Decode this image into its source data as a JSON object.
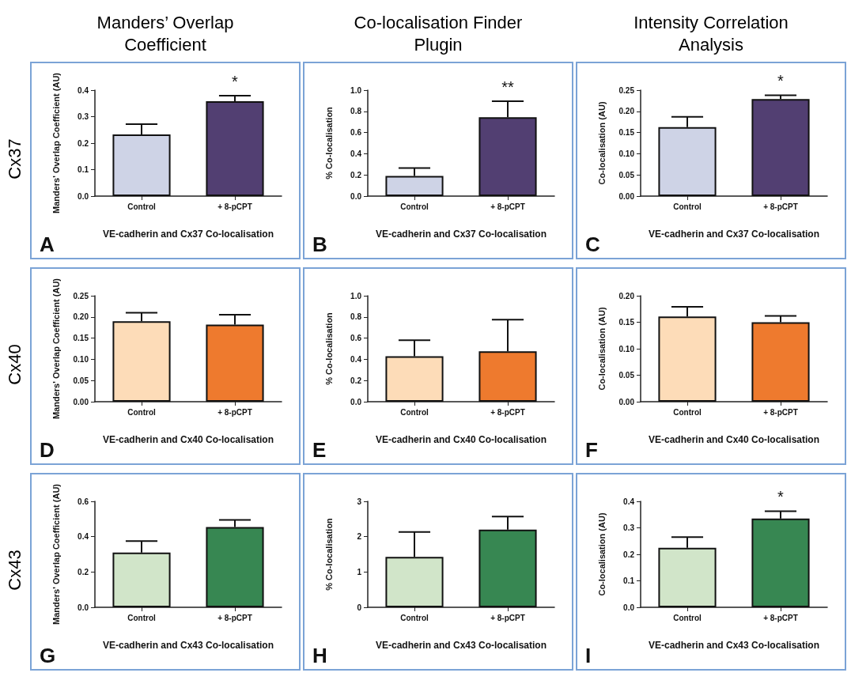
{
  "chart_data": [
    {
      "type": "bar",
      "title": "Manders’ Overlap Coefficient",
      "subtitle": "Cx37",
      "ylabel": "Manders' Overlap Coefficient (AU)",
      "xlabel": "VE-cadherin and Cx37 Co-localisation",
      "categories": [
        "Control",
        "+ 8-pCPT"
      ],
      "values": [
        0.233,
        0.358
      ],
      "colors": [
        "#ced3e6",
        "#523f72"
      ],
      "errors": [
        [
          0.233,
          0.272
        ],
        [
          0.358,
          0.379
        ]
      ],
      "ylim": [
        0,
        0.4
      ],
      "yticks": [
        {
          "value": 0,
          "label": "0.0"
        },
        {
          "value": 0.1,
          "label": "0.1"
        },
        {
          "value": 0.2,
          "label": "0.2"
        },
        {
          "value": 0.3,
          "label": "0.3"
        },
        {
          "value": 0.4,
          "label": "0.4"
        }
      ],
      "grid": false,
      "annotations": [
        "A",
        "*"
      ]
    },
    {
      "type": "bar",
      "title": "Co-localisation Finder Plugin",
      "ylabel": "% Co-localisation",
      "xlabel": "VE-cadherin and Cx37 Co-localisation",
      "categories": [
        "Control",
        "+ 8-pCPT"
      ],
      "values": [
        0.19,
        0.745
      ],
      "colors": [
        "#ced3e6",
        "#523f72"
      ],
      "errors": [
        [
          0.19,
          0.265
        ],
        [
          0.745,
          0.895
        ]
      ],
      "ylim": [
        0,
        1
      ],
      "yticks": [
        {
          "value": 0,
          "label": "0.0"
        },
        {
          "value": 0.2,
          "label": "0.2"
        },
        {
          "value": 0.4,
          "label": "0.4"
        },
        {
          "value": 0.6,
          "label": "0.6"
        },
        {
          "value": 0.8,
          "label": "0.8"
        },
        {
          "value": 1,
          "label": "1.0"
        }
      ],
      "grid": false,
      "annotations": [
        "B",
        "**"
      ]
    },
    {
      "type": "bar",
      "title": "Intensity Correlation Analysis",
      "ylabel": "Co-localisation (AU)",
      "xlabel": "VE-cadherin and Cx37 Co-localisation",
      "categories": [
        "Control",
        "+ 8-pCPT"
      ],
      "values": [
        0.163,
        0.229
      ],
      "colors": [
        "#ced3e6",
        "#523f72"
      ],
      "errors": [
        [
          0.163,
          0.187
        ],
        [
          0.229,
          0.238
        ]
      ],
      "ylim": [
        0,
        0.25
      ],
      "yticks": [
        {
          "value": 0,
          "label": "0.00"
        },
        {
          "value": 0.05,
          "label": "0.05"
        },
        {
          "value": 0.1,
          "label": "0.10"
        },
        {
          "value": 0.15,
          "label": "0.15"
        },
        {
          "value": 0.2,
          "label": "0.20"
        },
        {
          "value": 0.25,
          "label": "0.25"
        }
      ],
      "grid": false,
      "annotations": [
        "C",
        "*"
      ]
    },
    {
      "type": "bar",
      "subtitle": "Cx40",
      "ylabel": "Manders' Overlap Coefficient (AU)",
      "xlabel": "VE-cadherin and Cx40 Co-localisation",
      "categories": [
        "Control",
        "+ 8-pCPT"
      ],
      "values": [
        0.19,
        0.182
      ],
      "colors": [
        "#fddcb8",
        "#ee7a2e"
      ],
      "errors": [
        [
          0.19,
          0.21
        ],
        [
          0.182,
          0.205
        ]
      ],
      "ylim": [
        0,
        0.25
      ],
      "yticks": [
        {
          "value": 0,
          "label": "0.00"
        },
        {
          "value": 0.05,
          "label": "0.05"
        },
        {
          "value": 0.1,
          "label": "0.10"
        },
        {
          "value": 0.15,
          "label": "0.15"
        },
        {
          "value": 0.2,
          "label": "0.20"
        },
        {
          "value": 0.25,
          "label": "0.25"
        }
      ],
      "grid": false,
      "annotations": [
        "D"
      ]
    },
    {
      "type": "bar",
      "ylabel": "% Co-localisation",
      "xlabel": "VE-cadherin and Cx40 Co-localisation",
      "categories": [
        "Control",
        "+ 8-pCPT"
      ],
      "values": [
        0.43,
        0.475
      ],
      "colors": [
        "#fddcb8",
        "#ee7a2e"
      ],
      "errors": [
        [
          0.43,
          0.58
        ],
        [
          0.475,
          0.775
        ]
      ],
      "ylim": [
        0,
        1
      ],
      "yticks": [
        {
          "value": 0,
          "label": "0.0"
        },
        {
          "value": 0.2,
          "label": "0.2"
        },
        {
          "value": 0.4,
          "label": "0.4"
        },
        {
          "value": 0.6,
          "label": "0.6"
        },
        {
          "value": 0.8,
          "label": "0.8"
        },
        {
          "value": 1,
          "label": "1.0"
        }
      ],
      "grid": false,
      "annotations": [
        "E"
      ]
    },
    {
      "type": "bar",
      "ylabel": "Co-localisation (AU)",
      "xlabel": "VE-cadherin and Cx40 Co-localisation",
      "categories": [
        "Control",
        "+ 8-pCPT"
      ],
      "values": [
        0.161,
        0.15
      ],
      "colors": [
        "#fddcb8",
        "#ee7a2e"
      ],
      "errors": [
        [
          0.161,
          0.179
        ],
        [
          0.15,
          0.162
        ]
      ],
      "ylim": [
        0,
        0.2
      ],
      "yticks": [
        {
          "value": 0,
          "label": "0.00"
        },
        {
          "value": 0.05,
          "label": "0.05"
        },
        {
          "value": 0.1,
          "label": "0.10"
        },
        {
          "value": 0.15,
          "label": "0.15"
        },
        {
          "value": 0.2,
          "label": "0.20"
        }
      ],
      "grid": false,
      "annotations": [
        "F"
      ]
    },
    {
      "type": "bar",
      "subtitle": "Cx43",
      "ylabel": "Manders' Overlap Coefficient (AU)",
      "xlabel": "VE-cadherin and Cx43 Co-localisation",
      "categories": [
        "Control",
        "+ 8-pCPT"
      ],
      "values": [
        0.31,
        0.455
      ],
      "colors": [
        "#d1e5c9",
        "#378752"
      ],
      "errors": [
        [
          0.31,
          0.375
        ],
        [
          0.455,
          0.495
        ]
      ],
      "ylim": [
        0,
        0.6
      ],
      "yticks": [
        {
          "value": 0,
          "label": "0.0"
        },
        {
          "value": 0.2,
          "label": "0.2"
        },
        {
          "value": 0.4,
          "label": "0.4"
        },
        {
          "value": 0.6,
          "label": "0.6"
        }
      ],
      "grid": false,
      "annotations": [
        "G"
      ]
    },
    {
      "type": "bar",
      "ylabel": "% Co-localisation",
      "xlabel": "VE-cadherin and Cx43 Co-localisation",
      "categories": [
        "Control",
        "+ 8-pCPT"
      ],
      "values": [
        1.43,
        2.2
      ],
      "colors": [
        "#d1e5c9",
        "#378752"
      ],
      "errors": [
        [
          1.43,
          2.13
        ],
        [
          2.2,
          2.57
        ]
      ],
      "ylim": [
        0,
        3
      ],
      "yticks": [
        0,
        1,
        2,
        3
      ],
      "grid": false,
      "annotations": [
        "H"
      ]
    },
    {
      "type": "bar",
      "ylabel": "Co-localisation (AU)",
      "xlabel": "VE-cadherin and Cx43 Co-localisation",
      "categories": [
        "Control",
        "+ 8-pCPT"
      ],
      "values": [
        0.225,
        0.335
      ],
      "colors": [
        "#d1e5c9",
        "#378752"
      ],
      "errors": [
        [
          0.225,
          0.265
        ],
        [
          0.335,
          0.363
        ]
      ],
      "ylim": [
        0,
        0.4
      ],
      "yticks": [
        {
          "value": 0,
          "label": "0.0"
        },
        {
          "value": 0.1,
          "label": "0.1"
        },
        {
          "value": 0.2,
          "label": "0.2"
        },
        {
          "value": 0.3,
          "label": "0.3"
        },
        {
          "value": 0.4,
          "label": "0.4"
        }
      ],
      "grid": false,
      "annotations": [
        "I",
        "*"
      ]
    }
  ]
}
